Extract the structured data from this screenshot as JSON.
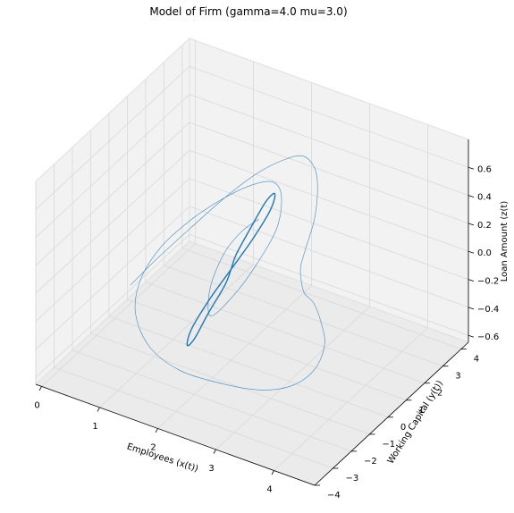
{
  "chart_data": {
    "type": "line",
    "projection": "3d",
    "title": "Model of Firm (gamma=4.0 mu=3.0)",
    "xlabel": "Employees (x(t))",
    "ylabel": "Working Capital (y(t))",
    "zlabel": "Loan Amount (z(t)",
    "xlim": [
      -0.1,
      4.7
    ],
    "ylim": [
      -4,
      4.4
    ],
    "zlim": [
      -0.65,
      0.8
    ],
    "xticks": [
      "0",
      "1",
      "2",
      "3",
      "4"
    ],
    "yticks": [
      "−4",
      "−3",
      "−2",
      "−1",
      "0",
      "1",
      "2",
      "3",
      "4"
    ],
    "zticks": [
      "−0.6",
      "−0.4",
      "−0.2",
      "0.0",
      "0.2",
      "0.4",
      "0.6"
    ],
    "grid": true,
    "colors": {
      "line": "#1f77b4",
      "pane_bottom": "#ebebeb",
      "pane_wall": "#f2f2f2",
      "grid": "#d9d9d9"
    },
    "series": [
      {
        "x": [
          1.15,
          1.35,
          1.6,
          1.9,
          2.2,
          2.5,
          2.8,
          3.1,
          3.3,
          3.4,
          3.35,
          3.2,
          3.05,
          2.95,
          2.95,
          3.05,
          3.2,
          3.25,
          3.15,
          2.9,
          2.5,
          2.0,
          1.6,
          1.3,
          1.2,
          1.3,
          1.55,
          1.85,
          2.1,
          2.25,
          2.3,
          2.35,
          2.25,
          2.1,
          1.9,
          1.8,
          1.85,
          2.0,
          2.2
        ],
        "y": [
          -2.8,
          -2.0,
          -1.0,
          0.0,
          0.8,
          1.3,
          1.4,
          1.1,
          0.6,
          0.1,
          -0.2,
          0.0,
          0.5,
          1.0,
          1.5,
          1.6,
          1.3,
          0.6,
          -0.3,
          -1.2,
          -2.0,
          -2.8,
          -3.2,
          -3.0,
          -2.4,
          -1.6,
          -0.8,
          0.0,
          0.8,
          1.5,
          1.8,
          1.4,
          0.6,
          -0.2,
          -0.8,
          -0.5,
          0.1,
          0.6,
          0.9
        ],
        "z": [
          0.1,
          0.22,
          0.35,
          0.5,
          0.62,
          0.7,
          0.76,
          0.75,
          0.68,
          0.55,
          0.38,
          0.2,
          0.02,
          -0.15,
          -0.28,
          -0.42,
          -0.52,
          -0.6,
          -0.62,
          -0.58,
          -0.5,
          -0.38,
          -0.22,
          -0.05,
          0.1,
          0.25,
          0.38,
          0.48,
          0.52,
          0.48,
          0.35,
          0.18,
          0.0,
          -0.15,
          -0.25,
          -0.1,
          0.08,
          0.2,
          0.28
        ]
      },
      {
        "x": [
          2.0,
          1.8,
          1.6,
          1.5,
          1.5,
          1.6,
          1.8,
          2.0,
          2.2,
          2.4,
          2.5,
          2.5,
          2.4,
          2.2,
          2.0
        ],
        "y": [
          0.0,
          -0.55,
          -0.9,
          -0.8,
          -0.4,
          0.0,
          0.3,
          0.0,
          -0.35,
          -0.2,
          0.3,
          0.8,
          0.9,
          0.55,
          0.0
        ],
        "z": [
          0.0,
          -0.18,
          -0.38,
          -0.52,
          -0.52,
          -0.38,
          -0.18,
          0.0,
          0.18,
          0.38,
          0.52,
          0.52,
          0.38,
          0.18,
          0.0
        ]
      }
    ]
  }
}
